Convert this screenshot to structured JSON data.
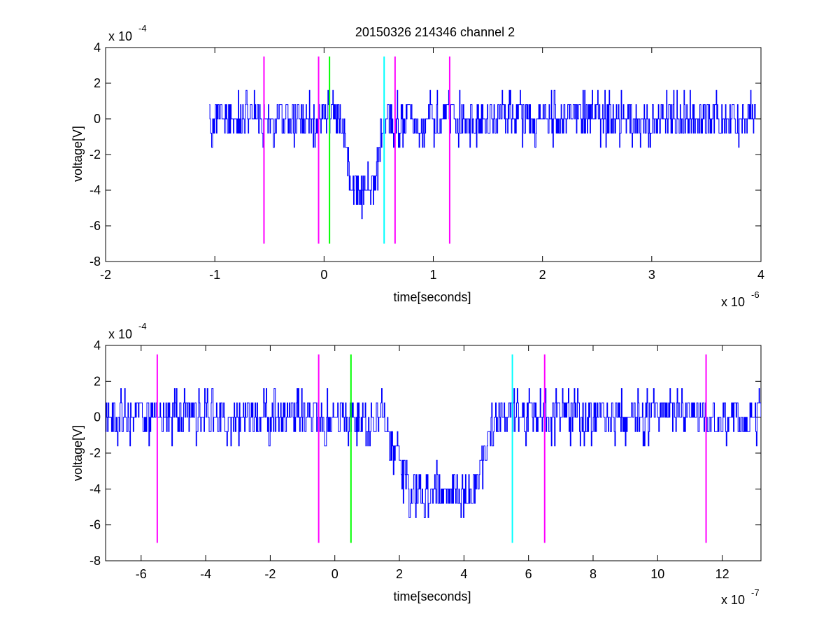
{
  "figure": {
    "background": "#ffffff",
    "trace_color": "#0000ff",
    "marker_colors": {
      "magenta": "#ff00ff",
      "green": "#00ff00",
      "cyan": "#00ffff"
    }
  },
  "chart_data": [
    {
      "type": "line",
      "title": "20150326 214346 channel 2",
      "xlabel": "time[seconds]",
      "ylabel": "voltage[V]",
      "x_exponent_label": "x 10",
      "x_exponent": "-6",
      "y_exponent_label": "x 10",
      "y_exponent": "-4",
      "xlim": [
        -2,
        4
      ],
      "ylim": [
        -8,
        4
      ],
      "xticks": [
        -2,
        -1,
        0,
        1,
        2,
        3,
        4
      ],
      "xtick_labels": [
        "-2",
        "-1",
        "0",
        "1",
        "2",
        "3",
        "4"
      ],
      "yticks": [
        -8,
        -6,
        -4,
        -2,
        0,
        2,
        4
      ],
      "ytick_labels": [
        "-8",
        "-6",
        "-4",
        "-2",
        "0",
        "2",
        "4"
      ],
      "grid": false,
      "series": [
        {
          "color": "#0000ff",
          "trace_description": "noisy voltage trace from -1.05 to 3.95 (x 10^-6 s), baseline ~0, dip to about -5 near 0.2-0.45",
          "x_range": [
            -1.05,
            3.95
          ],
          "seed": 20150326,
          "levels": [
            -6.4,
            -5.6,
            -4.8,
            -4.0,
            -3.2,
            -2.4,
            -1.6,
            -0.8,
            0,
            0.8,
            1.6,
            2.4,
            3.2
          ],
          "baseline": 0,
          "dip": {
            "start": 0.15,
            "bottom_start": 0.25,
            "bottom_end": 0.43,
            "end": 0.55,
            "depth": -4.3
          }
        }
      ],
      "markers": [
        {
          "x": -0.55,
          "color": "#ff00ff",
          "y_range": [
            -7,
            3.5
          ]
        },
        {
          "x": -0.05,
          "color": "#ff00ff",
          "y_range": [
            -7,
            3.5
          ]
        },
        {
          "x": 0.05,
          "color": "#00ff00",
          "y_range": [
            -7,
            3.5
          ]
        },
        {
          "x": 0.55,
          "color": "#00ffff",
          "y_range": [
            -7,
            3.5
          ]
        },
        {
          "x": 0.65,
          "color": "#ff00ff",
          "y_range": [
            -7,
            3.5
          ]
        },
        {
          "x": 1.15,
          "color": "#ff00ff",
          "y_range": [
            -7,
            3.5
          ]
        }
      ]
    },
    {
      "type": "line",
      "title": "",
      "xlabel": "time[seconds]",
      "ylabel": "voltage[V]",
      "x_exponent_label": "x 10",
      "x_exponent": "-7",
      "y_exponent_label": "x 10",
      "y_exponent": "-4",
      "xlim": [
        -7.1,
        13.2
      ],
      "ylim": [
        -8,
        4
      ],
      "xticks": [
        -6,
        -4,
        -2,
        0,
        2,
        4,
        6,
        8,
        10,
        12
      ],
      "xtick_labels": [
        "-6",
        "-4",
        "-2",
        "0",
        "2",
        "4",
        "6",
        "8",
        "10",
        "12"
      ],
      "yticks": [
        -8,
        -6,
        -4,
        -2,
        0,
        2,
        4
      ],
      "ytick_labels": [
        "-8",
        "-6",
        "-4",
        "-2",
        "0",
        "2",
        "4"
      ],
      "grid": false,
      "series": [
        {
          "color": "#0000ff",
          "trace_description": "zoomed noisy voltage trace, baseline ~0, dip to about -4.5 between 1.5 and 4.5 (x 10^-7 s)",
          "x_range": [
            -7.1,
            13.2
          ],
          "seed": 214346,
          "levels": [
            -6.4,
            -5.6,
            -4.8,
            -4.0,
            -3.2,
            -2.4,
            -1.6,
            -0.8,
            0,
            0.8,
            1.6,
            2.4,
            3.2
          ],
          "baseline": 0,
          "dip": {
            "start": 1.5,
            "bottom_start": 2.3,
            "bottom_end": 4.3,
            "end": 5.0,
            "depth": -4.2
          }
        }
      ],
      "markers": [
        {
          "x": -5.5,
          "color": "#ff00ff",
          "y_range": [
            -7,
            3.5
          ]
        },
        {
          "x": -0.5,
          "color": "#ff00ff",
          "y_range": [
            -7,
            3.5
          ]
        },
        {
          "x": 0.5,
          "color": "#00ff00",
          "y_range": [
            -7,
            3.5
          ]
        },
        {
          "x": 5.5,
          "color": "#00ffff",
          "y_range": [
            -7,
            3.5
          ]
        },
        {
          "x": 6.5,
          "color": "#ff00ff",
          "y_range": [
            -7,
            3.5
          ]
        },
        {
          "x": 11.5,
          "color": "#ff00ff",
          "y_range": [
            -7,
            3.5
          ]
        }
      ]
    }
  ]
}
